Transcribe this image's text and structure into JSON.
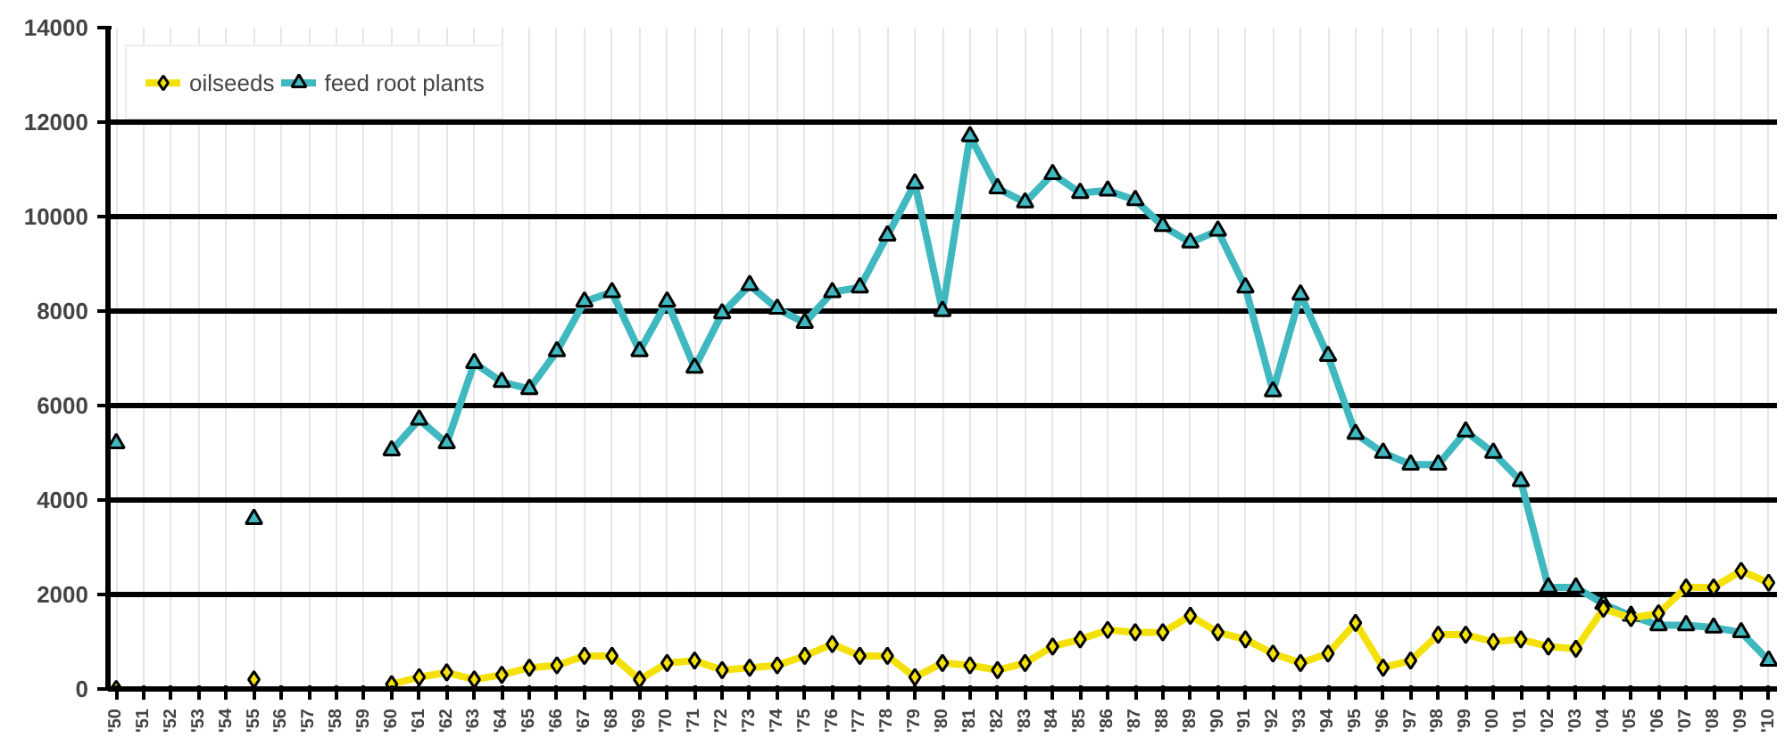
{
  "chart_data": {
    "type": "line",
    "categories": [
      "'50",
      "'51",
      "'52",
      "'53",
      "'54",
      "'55",
      "'56",
      "'57",
      "'58",
      "'59",
      "'60",
      "'61",
      "'62",
      "'63",
      "'64",
      "'65",
      "'66",
      "'67",
      "'68",
      "'69",
      "'70",
      "'71",
      "'72",
      "'73",
      "'74",
      "'75",
      "'76",
      "'77",
      "'78",
      "'79",
      "'80",
      "'81",
      "'82",
      "'83",
      "'84",
      "'85",
      "'86",
      "'87",
      "'88",
      "'89",
      "'90",
      "'91",
      "'92",
      "'93",
      "'94",
      "'95",
      "'96",
      "'97",
      "'98",
      "'99",
      "'00",
      "'01",
      "'02",
      "'03",
      "'04",
      "'05",
      "'06",
      "'07",
      "'08",
      "'09",
      "'10"
    ],
    "series": [
      {
        "name": "oilseeds",
        "color": "#f5e10a",
        "marker": "diamond",
        "values": [
          0,
          null,
          null,
          null,
          null,
          200,
          null,
          null,
          null,
          null,
          100,
          250,
          350,
          200,
          300,
          450,
          500,
          700,
          700,
          200,
          550,
          600,
          400,
          450,
          500,
          700,
          950,
          700,
          700,
          250,
          550,
          500,
          400,
          550,
          900,
          1050,
          1250,
          1200,
          1200,
          1550,
          1200,
          1050,
          750,
          550,
          750,
          1400,
          450,
          600,
          1150,
          1150,
          1000,
          1050,
          900,
          850,
          1700,
          1500,
          1600,
          2150,
          2150,
          2500,
          2250
        ]
      },
      {
        "name": "feed root plants",
        "color": "#3fb8c0",
        "marker": "triangle",
        "values": [
          5200,
          null,
          null,
          null,
          null,
          3600,
          null,
          null,
          null,
          null,
          5050,
          5700,
          5200,
          6900,
          6500,
          6350,
          7150,
          8200,
          8400,
          7150,
          8200,
          6800,
          7950,
          8550,
          8050,
          7750,
          8400,
          8500,
          9600,
          10700,
          8000,
          11700,
          10600,
          10300,
          10900,
          10500,
          10550,
          10350,
          9800,
          9450,
          9700,
          8500,
          6300,
          8350,
          7050,
          5400,
          5000,
          4750,
          4750,
          5450,
          5000,
          4400,
          2150,
          2150,
          1800,
          1550,
          1350,
          1350,
          1300,
          1200,
          600
        ]
      }
    ],
    "ylim": [
      0,
      14000
    ],
    "yticks": [
      0,
      2000,
      4000,
      6000,
      8000,
      10000,
      12000,
      14000
    ],
    "grid": true,
    "legend": "top left",
    "line_style": "solid"
  }
}
